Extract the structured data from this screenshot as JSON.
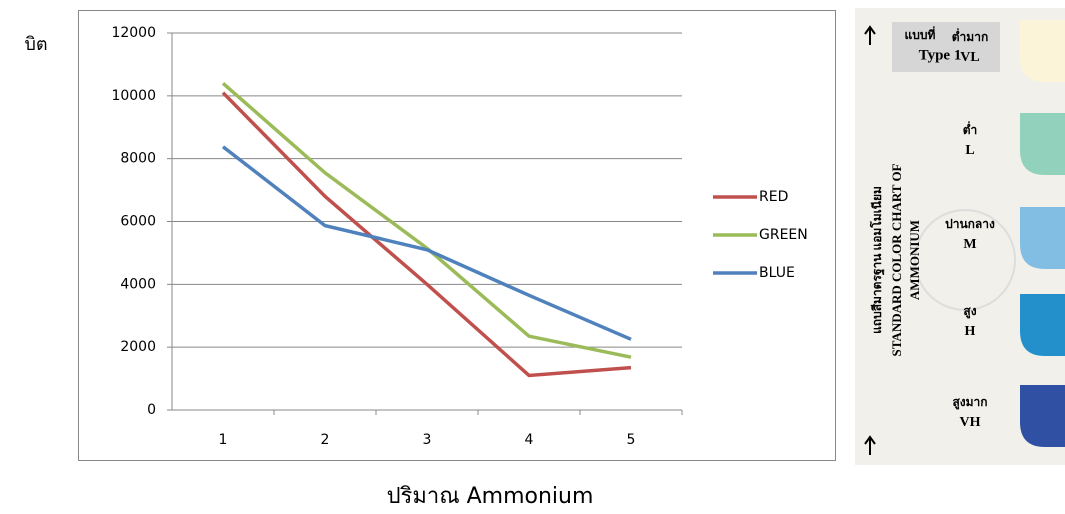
{
  "chart_data": {
    "type": "line",
    "y_label": "บิต",
    "x_label": "ปริมาณ Ammonium",
    "categories": [
      "1",
      "2",
      "3",
      "4",
      "5"
    ],
    "series": [
      {
        "name": "RED",
        "color": "#c0504d",
        "values": [
          10100,
          6800,
          4000,
          1100,
          1350
        ]
      },
      {
        "name": "GREEN",
        "color": "#9bbb59",
        "values": [
          10400,
          7550,
          5150,
          2350,
          1680
        ]
      },
      {
        "name": "BLUE",
        "color": "#4f81bd",
        "values": [
          8380,
          5870,
          5100,
          3650,
          2250
        ]
      }
    ],
    "ylim": [
      0,
      12000
    ],
    "yticks": [
      0,
      2000,
      4000,
      6000,
      8000,
      10000,
      12000
    ],
    "grid": true,
    "legend": "right"
  },
  "color_card": {
    "type_th": "แบบที่",
    "type_en": "Type 1",
    "title_th": "แถบสีมาตรฐาน แอมโมเนียม",
    "title_en": "STANDARD COLOR CHART OF",
    "title_en2": "AMMONIUM",
    "levels": [
      {
        "th": "ต่ำมาก",
        "en": "VL",
        "color": "#fcf4d8"
      },
      {
        "th": "ต่ำ",
        "en": "L",
        "color": "#92d1bb"
      },
      {
        "th": "ปานกลาง",
        "en": "M",
        "color": "#82bde3"
      },
      {
        "th": "สูง",
        "en": "H",
        "color": "#2390cb"
      },
      {
        "th": "สูงมาก",
        "en": "VH",
        "color": "#2f50a3"
      }
    ]
  }
}
